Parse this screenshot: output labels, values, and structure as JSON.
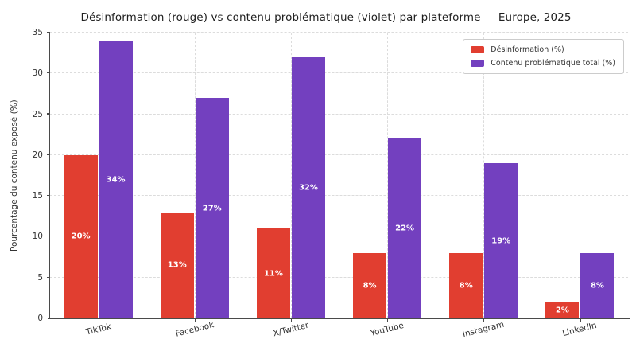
{
  "chart_data": {
    "type": "bar",
    "title": "Désinformation (rouge) vs contenu problématique (violet) par plateforme — Europe, 2025",
    "xlabel": "",
    "ylabel": "Pourcentage du contenu exposé (%)",
    "categories": [
      "TikTok",
      "Facebook",
      "X/Twitter",
      "YouTube",
      "Instagram",
      "LinkedIn"
    ],
    "series": [
      {
        "name": "Désinformation (%)",
        "color": "#e13e30",
        "values": [
          20,
          13,
          11,
          8,
          8,
          2
        ],
        "bar_labels": [
          "20%",
          "13%",
          "11%",
          "8%",
          "8%",
          "2%"
        ]
      },
      {
        "name": "Contenu problématique total (%)",
        "color": "#7340bf",
        "values": [
          34,
          27,
          32,
          22,
          19,
          8
        ],
        "bar_labels": [
          "34%",
          "27%",
          "32%",
          "22%",
          "19%",
          "8%"
        ]
      }
    ],
    "ylim": [
      0,
      35
    ],
    "yticks": [
      0,
      5,
      10,
      15,
      20,
      25,
      30,
      35
    ],
    "grid": "both-dashed",
    "legend_position": "upper-right",
    "bar_label_color": "#ffffff"
  },
  "colors": {
    "red": "#e13e30",
    "purple": "#7340bf",
    "grid": "#dcdcdc",
    "axis": "#4a4a4a",
    "tick_text": "#333333",
    "title_text": "#1f1f1f",
    "legend_border": "#cccccc",
    "background": "#ffffff"
  }
}
